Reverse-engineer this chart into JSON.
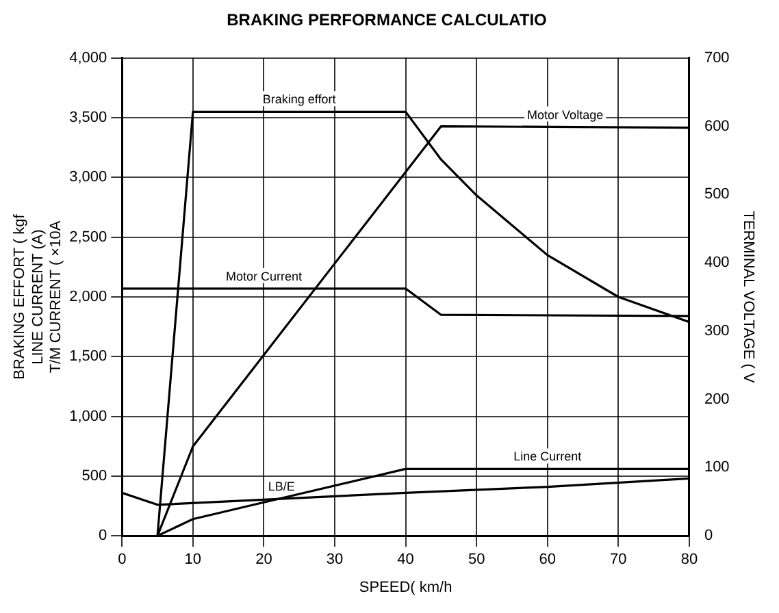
{
  "chart_data": {
    "type": "line",
    "title": "BRAKING PERFORMANCE CALCULATIO",
    "xlabel": "SPEED( km/h",
    "ylabel": "BRAKING EFFORT ( kgf\nLINE CURRENT (A)\nT/M CURRENT ( ×10A",
    "y2label": "TERMINAL VOLTAGE ( V",
    "xlim": [
      0,
      80
    ],
    "xticks": [
      0,
      10,
      20,
      30,
      40,
      50,
      60,
      70,
      80
    ],
    "ylim": [
      0,
      4000
    ],
    "yticks": [
      0,
      {
        "value": 500,
        "label": "500"
      },
      {
        "value": 1000,
        "label": "1,000"
      },
      {
        "value": 1500,
        "label": "1,500"
      },
      {
        "value": 2000,
        "label": "2,000"
      },
      {
        "value": 2500,
        "label": "2,500"
      },
      {
        "value": 3000,
        "label": "3,000"
      },
      {
        "value": 3500,
        "label": "3,500"
      },
      {
        "value": 4000,
        "label": "4,000"
      }
    ],
    "y2lim": [
      0,
      700
    ],
    "y2ticks": [
      0,
      100,
      200,
      300,
      400,
      500,
      600,
      700
    ],
    "grid": true,
    "legend": false,
    "marker": "none",
    "line_style": "solid",
    "series": [
      {
        "name": "Braking effort",
        "color": "#000000",
        "x": [
          5,
          10,
          40,
          45,
          50,
          55,
          60,
          70,
          80
        ],
        "values": [
          0,
          3550,
          3550,
          3150,
          2850,
          2600,
          2350,
          2000,
          1790
        ]
      },
      {
        "name": "Motor Voltage",
        "color": "#000000",
        "axis": "y2",
        "x": [
          5,
          10,
          45,
          80
        ],
        "values": [
          0,
          131,
          600,
          598
        ]
      },
      {
        "name": "Motor Current",
        "color": "#000000",
        "x": [
          0,
          40,
          45,
          80
        ],
        "values": [
          2070,
          2070,
          1850,
          1840
        ]
      },
      {
        "name": "Line Current",
        "color": "#000000",
        "x": [
          5,
          10,
          20,
          40,
          80
        ],
        "values": [
          0,
          140,
          280,
          560,
          560
        ]
      },
      {
        "name": "LB/E",
        "color": "#000000",
        "x": [
          0,
          5,
          40,
          60,
          80
        ],
        "values": [
          360,
          260,
          360,
          410,
          480
        ]
      }
    ]
  }
}
